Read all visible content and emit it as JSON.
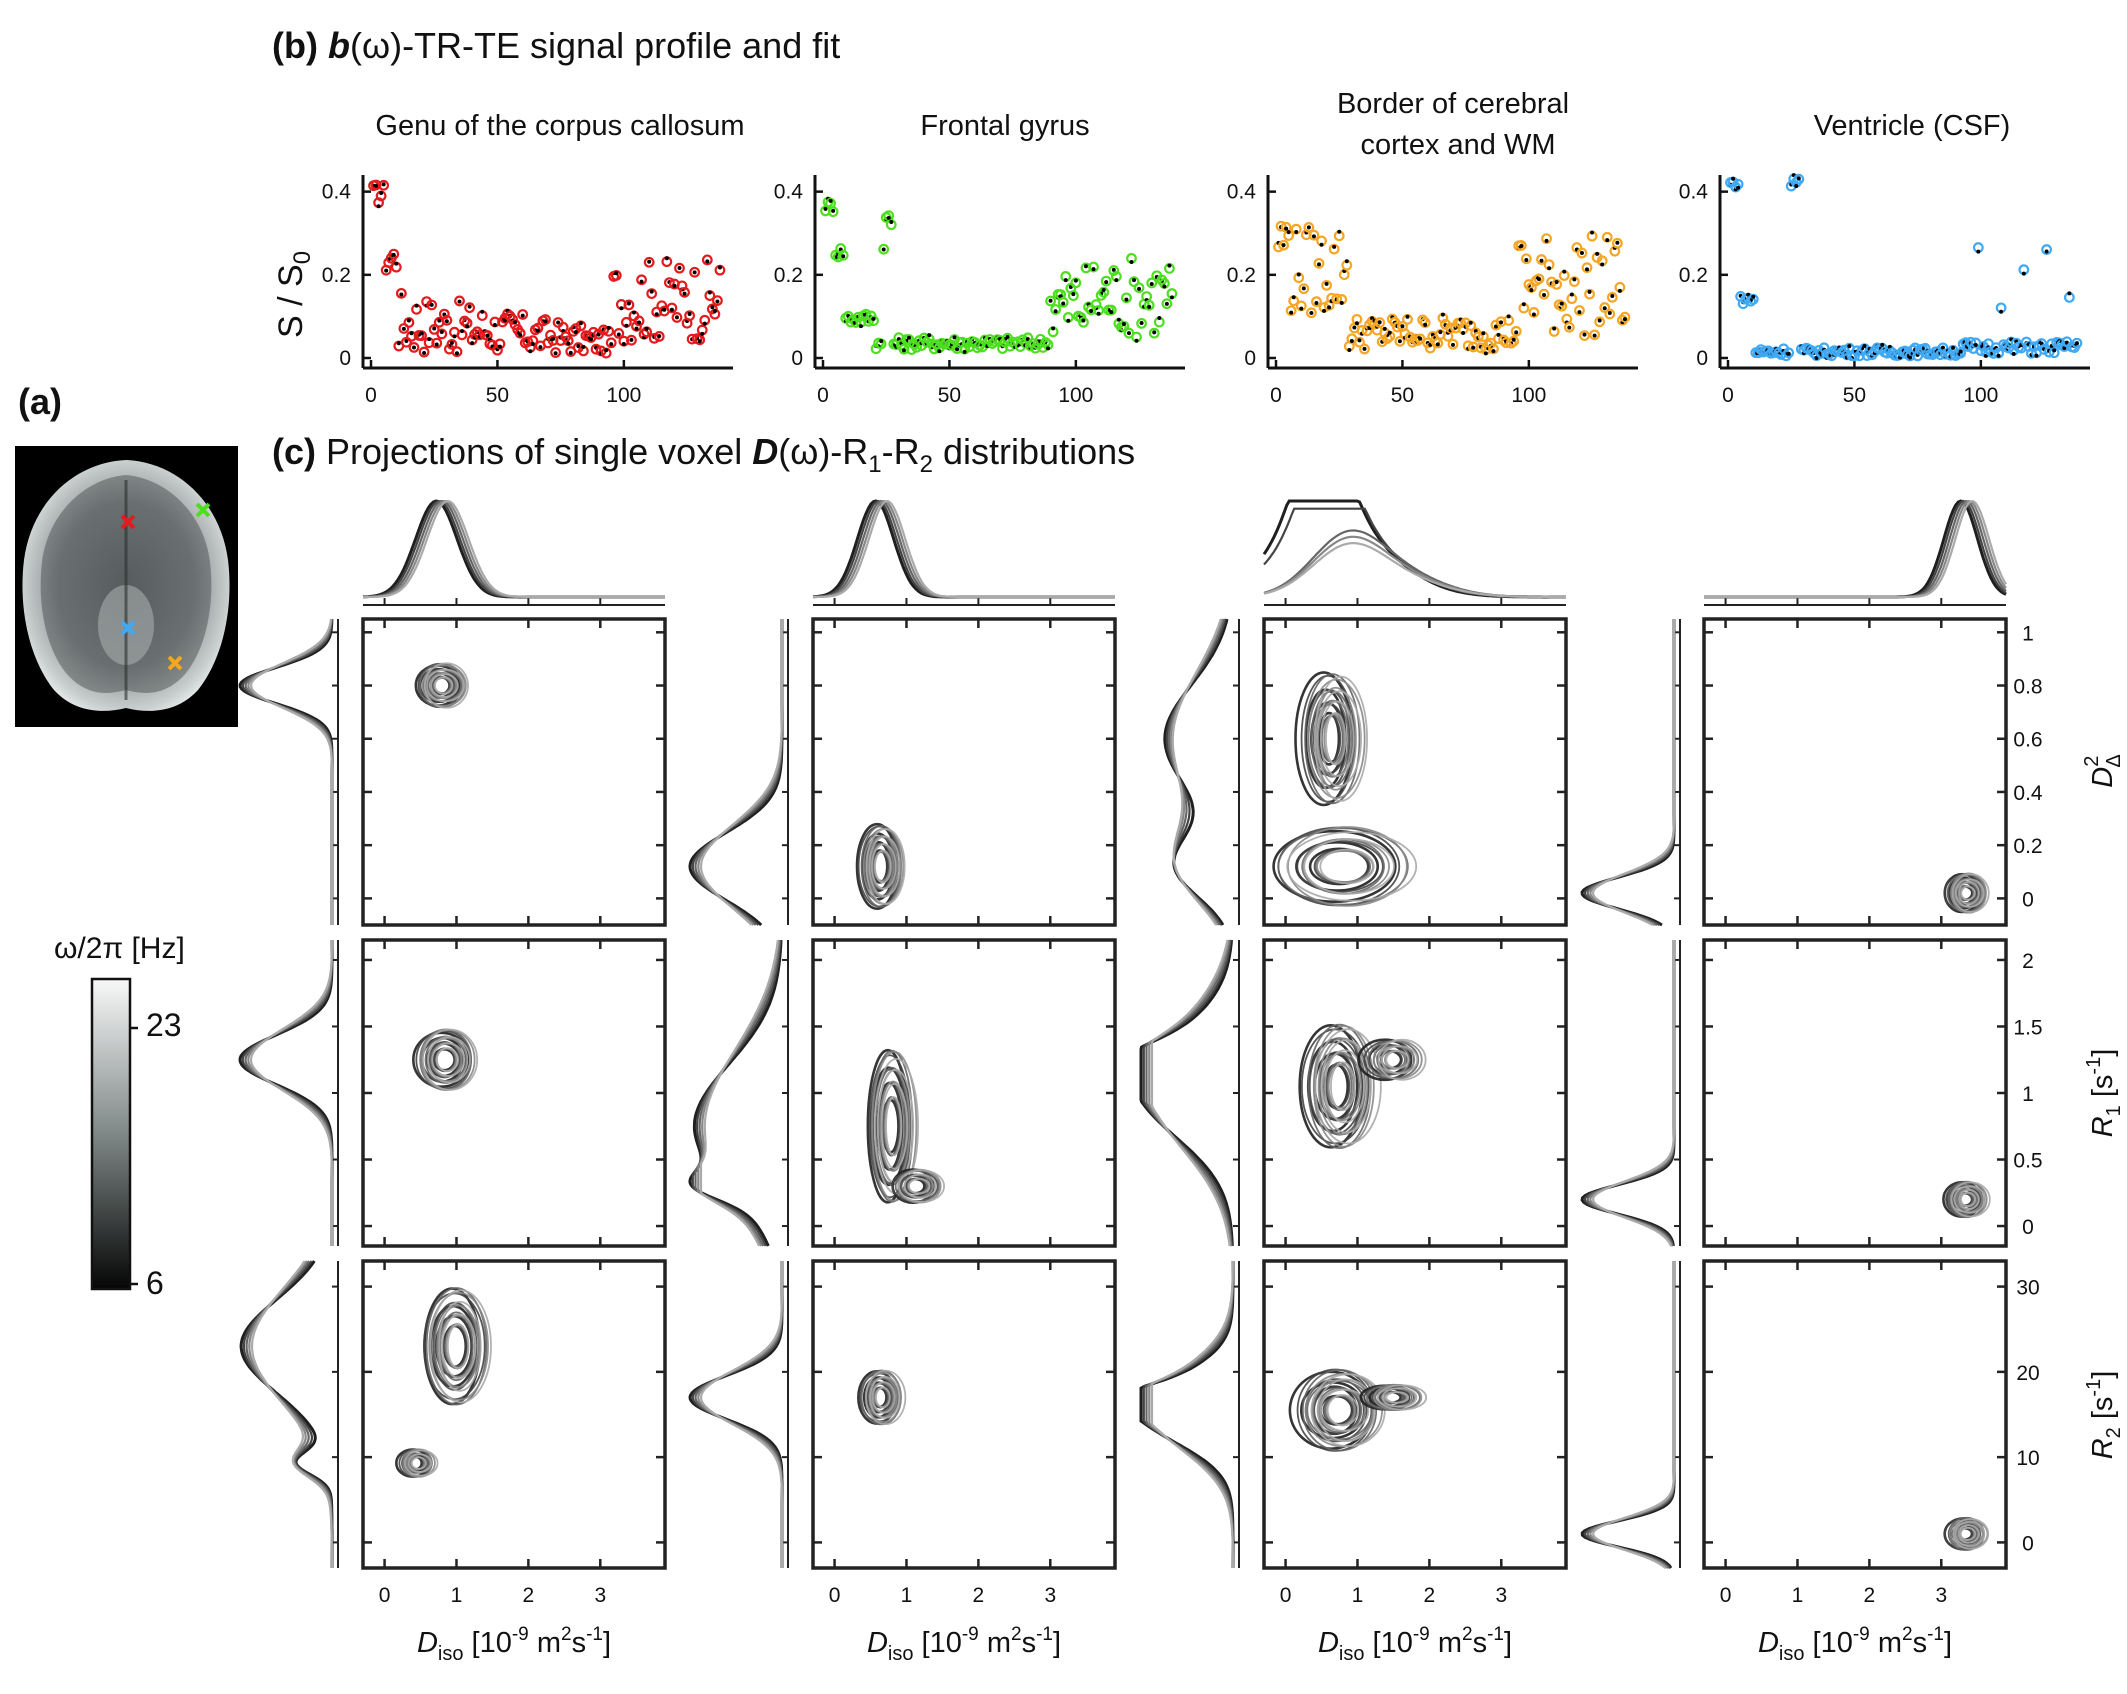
{
  "panel_a": {
    "label": "(a)",
    "colorbar": {
      "title": "ω/2π [Hz]",
      "max_label": "23",
      "min_label": "6",
      "range": [
        6,
        23
      ],
      "colormap": "gray"
    },
    "markers": [
      {
        "region": "Genu of the corpus callosum",
        "color": "#e41a1c"
      },
      {
        "region": "Frontal gyrus",
        "color": "#4ddf1f"
      },
      {
        "region": "Border of cerebral cortex and WM",
        "color": "#f5a623"
      },
      {
        "region": "Ventricle (CSF)",
        "color": "#3fa9f5"
      }
    ]
  },
  "panel_b": {
    "label_bold": "(b)",
    "label_bold_italic": "b",
    "label_rest": "(ω)-TR-TE signal profile and fit",
    "ylabel": "S / S",
    "ylabel_sub": "0"
  },
  "panel_c": {
    "label_bold": "(c)",
    "label_pre": " Projections of single voxel ",
    "label_bold_italic": "D",
    "label_post": "(ω)-R",
    "sub1": "1",
    "mid": "-R",
    "sub2": "2",
    "tail": " distributions",
    "xlabel": {
      "main": "D",
      "sub": "iso",
      "rest": " [10",
      "sup": "-9",
      "rest2": " m",
      "sup2": "2",
      "rest3": "s",
      "sup3": "-1",
      "end": "]"
    },
    "row_labels": [
      {
        "main": "D",
        "sub": "Δ",
        "sup": "2",
        "rest": ""
      },
      {
        "main": "R",
        "sub": "1",
        "sup": "",
        "rest": " [s",
        "rsup": "-1",
        "end": "]"
      },
      {
        "main": "R",
        "sub": "2",
        "sup": "",
        "rest": " [s",
        "rsup": "-1",
        "end": "]"
      }
    ]
  },
  "chart_data": [
    {
      "type": "scatter",
      "title": "Genu of the corpus callosum",
      "xlabel": "",
      "ylabel": "S / S0",
      "xlim": [
        0,
        140
      ],
      "ylim": [
        0,
        0.44
      ],
      "xticks": [
        0,
        50,
        100
      ],
      "yticks": [
        0,
        0.2,
        0.4
      ],
      "series": [
        {
          "marker": "open-circle",
          "color": "#e41a1c",
          "values_shape": "high at x=3-5 (~0.41), drops to ~0.02-0.19 for x 10-95, rises to 0.1-0.26 for x 100-140"
        },
        {
          "marker": "dot",
          "color": "#000000"
        }
      ]
    },
    {
      "type": "scatter",
      "title": "Frontal gyrus",
      "xlim": [
        0,
        140
      ],
      "ylim": [
        0,
        0.44
      ],
      "xticks": [
        0,
        50,
        100
      ],
      "yticks": [
        0,
        0.2,
        0.4
      ],
      "series": [
        {
          "marker": "open-circle",
          "color": "#4ddf1f"
        },
        {
          "marker": "dot",
          "color": "#000000"
        }
      ]
    },
    {
      "type": "scatter",
      "title": "Border of cerebral cortex and WM",
      "xlim": [
        0,
        140
      ],
      "ylim": [
        0,
        0.44
      ],
      "xticks": [
        0,
        50,
        100
      ],
      "yticks": [
        0,
        0.2,
        0.4
      ],
      "series": [
        {
          "marker": "open-circle",
          "color": "#f5a623"
        },
        {
          "marker": "dot",
          "color": "#000000"
        }
      ]
    },
    {
      "type": "scatter",
      "title": "Ventricle (CSF)",
      "xlim": [
        0,
        140
      ],
      "ylim": [
        0,
        0.44
      ],
      "xticks": [
        0,
        50,
        100
      ],
      "yticks": [
        0,
        0.2,
        0.4
      ],
      "series": [
        {
          "marker": "open-circle",
          "color": "#3fa9f5"
        },
        {
          "marker": "dot",
          "color": "#000000"
        }
      ]
    },
    {
      "type": "contour",
      "title": "Projections of single voxel D(ω)-R1-R2 distributions",
      "xlabel": "Diso [10-9 m2s-1]",
      "xlim": [
        -0.3,
        3.9
      ],
      "xticks": [
        0,
        1,
        2,
        3
      ],
      "rows": [
        {
          "ylabel": "DΔ2",
          "ylim": [
            -0.1,
            1.05
          ],
          "yticks": [
            0,
            0.2,
            0.4,
            0.6,
            0.8,
            1
          ]
        },
        {
          "ylabel": "R1 [s-1]",
          "ylim": [
            -0.15,
            2.15
          ],
          "yticks": [
            0,
            0.5,
            1,
            1.5,
            2
          ]
        },
        {
          "ylabel": "R2 [s-1]",
          "ylim": [
            -3,
            33
          ],
          "yticks": [
            0,
            10,
            20,
            30
          ]
        }
      ],
      "columns": [
        {
          "region": "Genu of the corpus callosum",
          "blobs": [
            [
              {
                "x": 0.8,
                "y": 0.8,
                "rx": 0.32,
                "ry": 0.08,
                "w": 1
              }
            ],
            [
              {
                "x": 0.85,
                "y": 1.25,
                "rx": 0.38,
                "ry": 0.22,
                "w": 1
              }
            ],
            [
              {
                "x": 1.0,
                "y": 23,
                "rx": 0.4,
                "ry": 6.5,
                "w": 1
              },
              {
                "x": 0.45,
                "y": 9.3,
                "rx": 0.22,
                "ry": 1.6,
                "w": 0.35
              }
            ]
          ]
        },
        {
          "region": "Frontal gyrus",
          "blobs": [
            [
              {
                "x": 0.65,
                "y": 0.12,
                "rx": 0.28,
                "ry": 0.15,
                "w": 1
              }
            ],
            [
              {
                "x": 0.8,
                "y": 0.75,
                "rx": 0.3,
                "ry": 0.55,
                "w": 1
              },
              {
                "x": 1.15,
                "y": 0.3,
                "rx": 0.3,
                "ry": 0.12,
                "w": 0.4
              }
            ],
            [
              {
                "x": 0.65,
                "y": 17,
                "rx": 0.26,
                "ry": 3.0,
                "w": 1
              }
            ]
          ]
        },
        {
          "region": "Border of cerebral cortex and WM",
          "blobs": [
            [
              {
                "x": 0.65,
                "y": 0.6,
                "rx": 0.38,
                "ry": 0.24,
                "w": 1
              },
              {
                "x": 0.8,
                "y": 0.12,
                "rx": 0.85,
                "ry": 0.14,
                "w": 0.8
              }
            ],
            [
              {
                "x": 0.75,
                "y": 1.05,
                "rx": 0.45,
                "ry": 0.45,
                "w": 1
              },
              {
                "x": 1.5,
                "y": 1.25,
                "rx": 0.35,
                "ry": 0.15,
                "w": 0.3
              }
            ],
            [
              {
                "x": 0.75,
                "y": 15.5,
                "rx": 0.55,
                "ry": 4.5,
                "w": 1
              },
              {
                "x": 1.5,
                "y": 17,
                "rx": 0.35,
                "ry": 1.5,
                "w": 0.3
              }
            ]
          ]
        },
        {
          "region": "Ventricle (CSF)",
          "blobs": [
            [
              {
                "x": 3.35,
                "y": 0.02,
                "rx": 0.26,
                "ry": 0.07,
                "w": 1
              }
            ],
            [
              {
                "x": 3.35,
                "y": 0.2,
                "rx": 0.26,
                "ry": 0.13,
                "w": 1
              }
            ],
            [
              {
                "x": 3.35,
                "y": 1.0,
                "rx": 0.26,
                "ry": 1.8,
                "w": 1
              }
            ]
          ]
        }
      ]
    }
  ]
}
